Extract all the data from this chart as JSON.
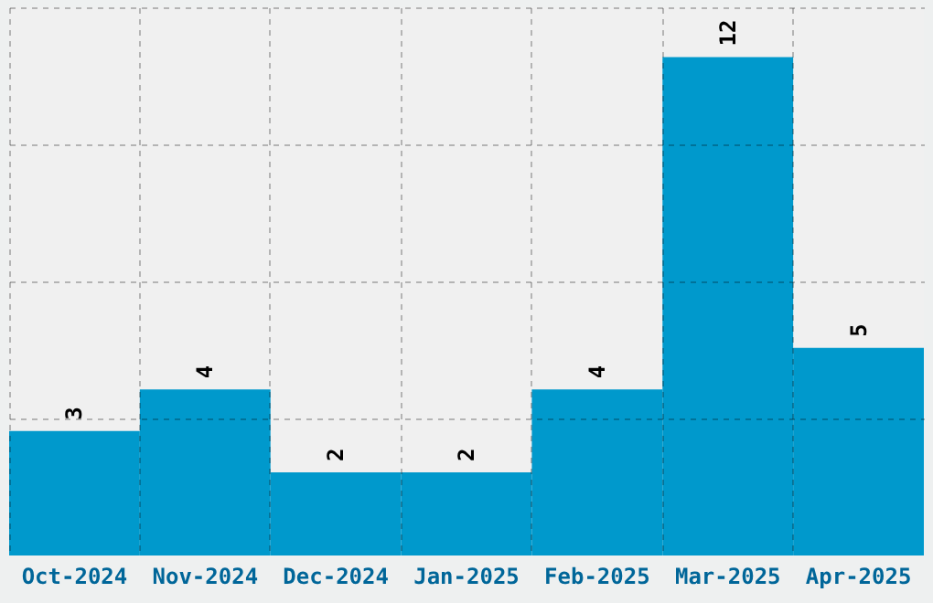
{
  "chart_data": {
    "type": "bar",
    "categories": [
      "Oct-2024",
      "Nov-2024",
      "Dec-2024",
      "Jan-2025",
      "Feb-2025",
      "Mar-2025",
      "Apr-2025"
    ],
    "values": [
      3,
      4,
      2,
      2,
      4,
      12,
      5
    ],
    "color": "#0099cc",
    "ylim": [
      0,
      13.2
    ],
    "yticks": [
      {
        "value": 3.3,
        "label": null
      },
      {
        "value": 6.6,
        "label": null
      },
      {
        "value": 9.9,
        "label": null
      },
      {
        "value": 13.2,
        "label": null
      }
    ],
    "grid": true,
    "data_labels": true,
    "tick_labels": "x"
  }
}
